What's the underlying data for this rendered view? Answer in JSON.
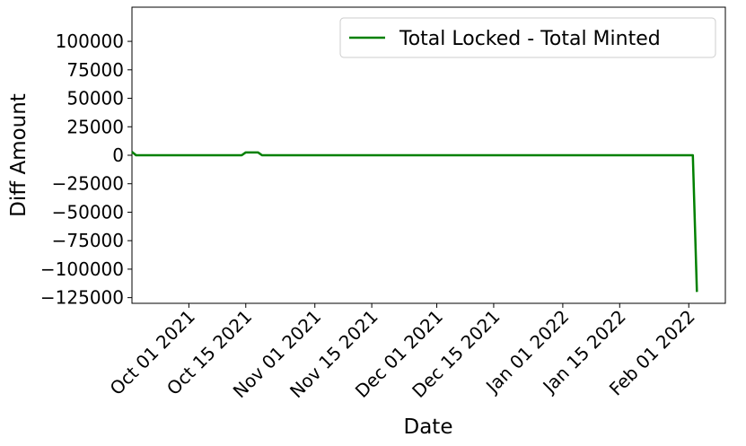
{
  "chart_data": {
    "type": "line",
    "xlabel": "Date",
    "ylabel": "Diff Amount",
    "x": [
      "2021-09-17",
      "2021-09-18",
      "2021-10-14",
      "2021-10-15",
      "2021-10-18",
      "2021-10-19",
      "2022-02-02",
      "2022-02-03"
    ],
    "series": [
      {
        "name": "Total Locked - Total Minted",
        "color": "#008000",
        "values": [
          3000,
          0,
          0,
          2500,
          2500,
          0,
          0,
          -120000
        ]
      }
    ],
    "xlim": [
      "2021-09-17",
      "2022-02-10"
    ],
    "xticks": [
      {
        "value": "2021-10-01",
        "label": "Oct 01 2021"
      },
      {
        "value": "2021-10-15",
        "label": "Oct 15 2021"
      },
      {
        "value": "2021-11-01",
        "label": "Nov 01 2021"
      },
      {
        "value": "2021-11-15",
        "label": "Nov 15 2021"
      },
      {
        "value": "2021-12-01",
        "label": "Dec 01 2021"
      },
      {
        "value": "2021-12-15",
        "label": "Dec 15 2021"
      },
      {
        "value": "2022-01-01",
        "label": "Jan 01 2022"
      },
      {
        "value": "2022-01-15",
        "label": "Jan 15 2022"
      },
      {
        "value": "2022-02-01",
        "label": "Feb 01 2022"
      }
    ],
    "ylim": [
      -130000,
      130000
    ],
    "yticks": [
      {
        "value": -125000,
        "label": "−125000"
      },
      {
        "value": -100000,
        "label": "−100000"
      },
      {
        "value": -75000,
        "label": "−75000"
      },
      {
        "value": -50000,
        "label": "−50000"
      },
      {
        "value": -25000,
        "label": "−25000"
      },
      0,
      25000,
      50000,
      75000,
      100000
    ],
    "legend": "upper right",
    "grid": false
  }
}
